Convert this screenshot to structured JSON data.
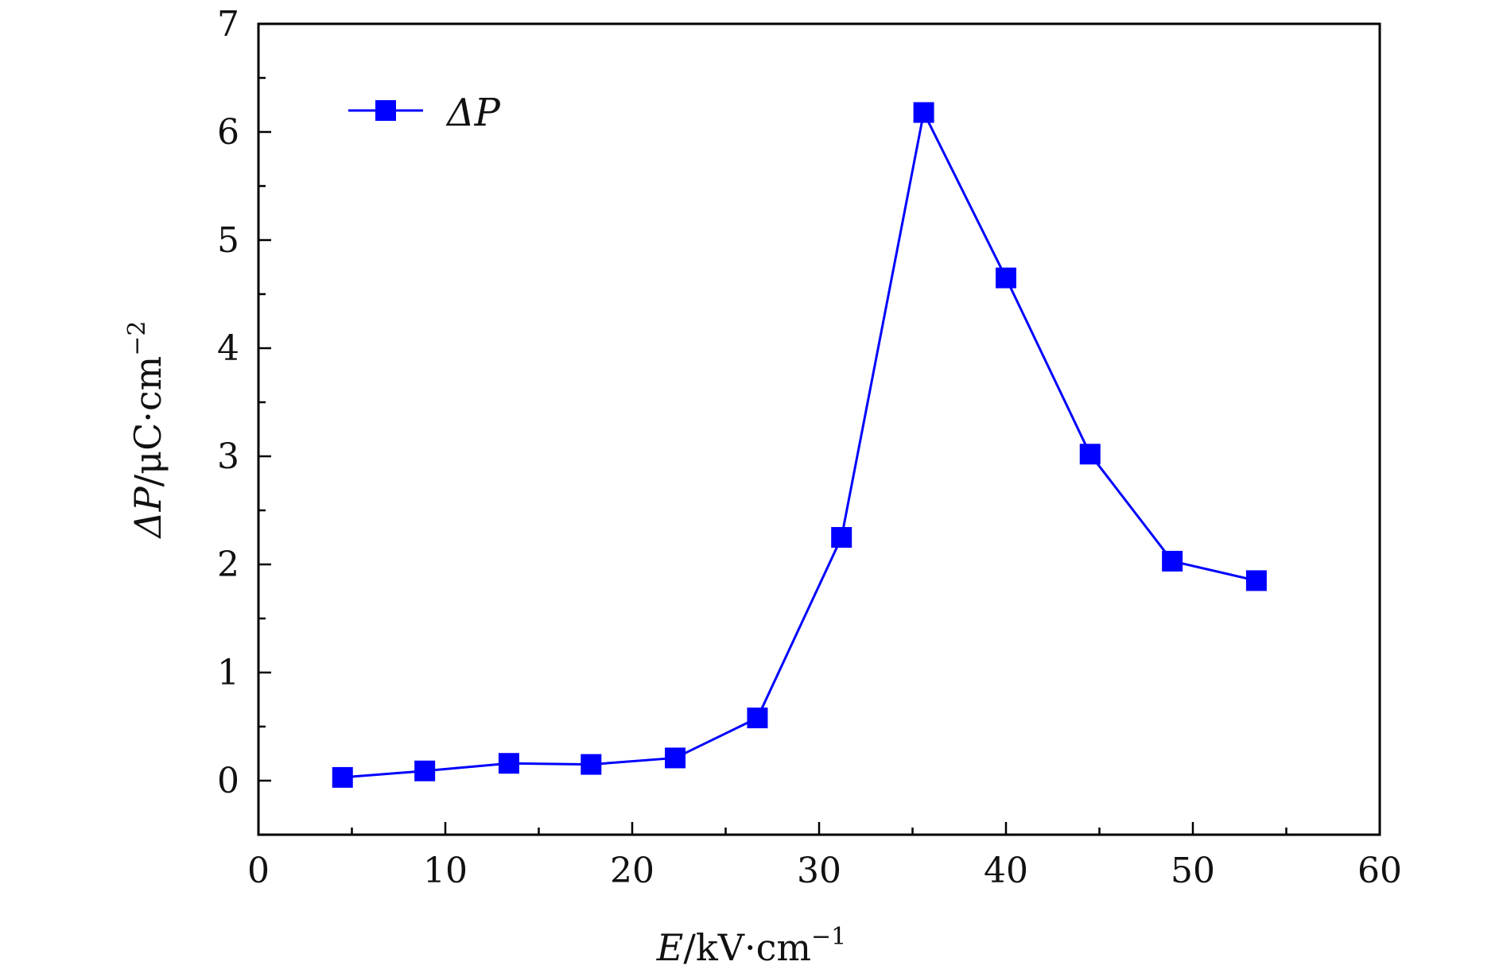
{
  "chart_data": {
    "type": "line",
    "title": "",
    "xlabel": {
      "var": "E",
      "unit": "/kV·cm",
      "exp": "−1"
    },
    "ylabel": {
      "var": "ΔP",
      "unit": "/μC·cm",
      "exp": "−2"
    },
    "xlim": [
      0,
      60
    ],
    "ylim": [
      -0.5,
      7
    ],
    "xticks": [
      0,
      10,
      20,
      30,
      40,
      50,
      60
    ],
    "yticks": [
      0,
      1,
      2,
      3,
      4,
      5,
      6,
      7
    ],
    "grid": false,
    "legend": {
      "position": "top-left"
    },
    "series": [
      {
        "name": "ΔP",
        "color": "#0000ff",
        "marker": "square",
        "x": [
          4.5,
          8.9,
          13.4,
          17.8,
          22.3,
          26.7,
          31.2,
          35.6,
          40.0,
          44.5,
          48.9,
          53.4
        ],
        "y": [
          0.03,
          0.09,
          0.16,
          0.15,
          0.21,
          0.58,
          2.25,
          6.18,
          4.65,
          3.02,
          2.03,
          1.85
        ]
      }
    ]
  }
}
